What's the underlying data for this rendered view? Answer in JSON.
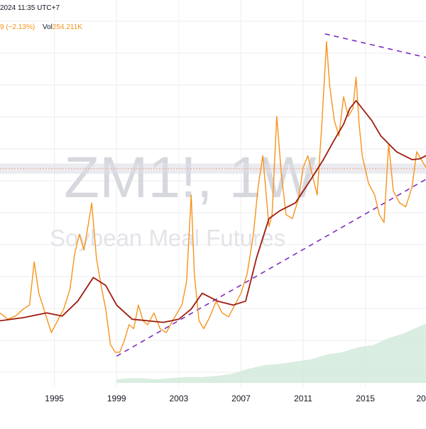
{
  "header": {
    "datetime": "2024 11:35 UTC+7",
    "change": "9 (−2.13%)",
    "volume_label": "Vol",
    "volume_value": "254.211K"
  },
  "watermark": {
    "symbol": "ZM1!, 1W",
    "name": "Soybean Meal Futures"
  },
  "colors": {
    "price": "#f7931a",
    "moving_average": "#9e1b0f",
    "trendline": "#7b2cbf",
    "volume": "#cfe8d8",
    "grid": "#eceef2",
    "band": "#dde0e6"
  },
  "chart_data": {
    "type": "line",
    "title": "ZM1!, 1W",
    "subtitle": "Soybean Meal Futures",
    "xlabel": "",
    "ylabel": "",
    "x_ticks": [
      "1995",
      "1999",
      "2003",
      "2007",
      "2011",
      "2015",
      "20"
    ],
    "xlim": [
      1991.5,
      2018.9
    ],
    "ylim": [
      100,
      560
    ],
    "grid": true,
    "series": [
      {
        "style": "line",
        "points": [
          [
            1991.5,
            180
          ],
          [
            1992.0,
            172
          ],
          [
            1992.5,
            176
          ],
          [
            1993.0,
            185
          ],
          [
            1993.4,
            190
          ],
          [
            1993.7,
            245
          ],
          [
            1994.0,
            205
          ],
          [
            1994.4,
            180
          ],
          [
            1994.8,
            155
          ],
          [
            1995.2,
            170
          ],
          [
            1995.6,
            185
          ],
          [
            1996.0,
            210
          ],
          [
            1996.3,
            255
          ],
          [
            1996.6,
            280
          ],
          [
            1996.9,
            260
          ],
          [
            1997.2,
            295
          ],
          [
            1997.4,
            320
          ],
          [
            1997.7,
            250
          ],
          [
            1998.0,
            215
          ],
          [
            1998.3,
            185
          ],
          [
            1998.6,
            140
          ],
          [
            1998.9,
            130
          ],
          [
            1999.2,
            130
          ],
          [
            1999.5,
            145
          ],
          [
            1999.8,
            165
          ],
          [
            2000.1,
            160
          ],
          [
            2000.4,
            190
          ],
          [
            2000.7,
            170
          ],
          [
            2001.0,
            165
          ],
          [
            2001.4,
            180
          ],
          [
            2001.8,
            160
          ],
          [
            2002.2,
            155
          ],
          [
            2002.6,
            170
          ],
          [
            2002.9,
            180
          ],
          [
            2003.2,
            190
          ],
          [
            2003.5,
            220
          ],
          [
            2003.8,
            330
          ],
          [
            2004.0,
            230
          ],
          [
            2004.3,
            170
          ],
          [
            2004.6,
            160
          ],
          [
            2005.0,
            175
          ],
          [
            2005.4,
            195
          ],
          [
            2005.8,
            180
          ],
          [
            2006.2,
            175
          ],
          [
            2006.6,
            190
          ],
          [
            2007.0,
            205
          ],
          [
            2007.4,
            230
          ],
          [
            2007.8,
            280
          ],
          [
            2008.1,
            340
          ],
          [
            2008.4,
            380
          ],
          [
            2008.6,
            335
          ],
          [
            2008.8,
            290
          ],
          [
            2009.0,
            305
          ],
          [
            2009.3,
            430
          ],
          [
            2009.6,
            355
          ],
          [
            2009.9,
            305
          ],
          [
            2010.3,
            300
          ],
          [
            2010.7,
            325
          ],
          [
            2011.0,
            365
          ],
          [
            2011.3,
            380
          ],
          [
            2011.6,
            355
          ],
          [
            2011.9,
            330
          ],
          [
            2012.2,
            420
          ],
          [
            2012.5,
            525
          ],
          [
            2012.7,
            470
          ],
          [
            2013.0,
            425
          ],
          [
            2013.3,
            405
          ],
          [
            2013.6,
            455
          ],
          [
            2013.9,
            430
          ],
          [
            2014.2,
            440
          ],
          [
            2014.4,
            480
          ],
          [
            2014.6,
            420
          ],
          [
            2014.8,
            380
          ],
          [
            2015.2,
            345
          ],
          [
            2015.6,
            330
          ],
          [
            2015.9,
            305
          ],
          [
            2016.2,
            295
          ],
          [
            2016.5,
            395
          ],
          [
            2016.8,
            335
          ],
          [
            2017.2,
            320
          ],
          [
            2017.6,
            315
          ],
          [
            2018.0,
            340
          ],
          [
            2018.3,
            385
          ],
          [
            2018.6,
            375
          ],
          [
            2018.9,
            365
          ]
        ]
      },
      {
        "style": "line",
        "points": [
          [
            1991.5,
            170
          ],
          [
            1993.0,
            174
          ],
          [
            1994.5,
            180
          ],
          [
            1995.5,
            176
          ],
          [
            1996.5,
            195
          ],
          [
            1997.5,
            225
          ],
          [
            1998.3,
            215
          ],
          [
            1999.0,
            190
          ],
          [
            2000.0,
            172
          ],
          [
            2001.0,
            170
          ],
          [
            2002.0,
            168
          ],
          [
            2003.0,
            172
          ],
          [
            2003.8,
            185
          ],
          [
            2004.5,
            205
          ],
          [
            2005.5,
            195
          ],
          [
            2006.5,
            190
          ],
          [
            2007.3,
            195
          ],
          [
            2008.0,
            250
          ],
          [
            2008.8,
            300
          ],
          [
            2009.5,
            310
          ],
          [
            2010.5,
            320
          ],
          [
            2011.5,
            350
          ],
          [
            2012.3,
            375
          ],
          [
            2013.0,
            400
          ],
          [
            2013.6,
            420
          ],
          [
            2014.0,
            440
          ],
          [
            2014.4,
            450
          ],
          [
            2014.8,
            440
          ],
          [
            2015.4,
            425
          ],
          [
            2016.0,
            405
          ],
          [
            2016.5,
            395
          ],
          [
            2017.0,
            385
          ],
          [
            2017.5,
            380
          ],
          [
            2018.0,
            375
          ],
          [
            2018.5,
            376
          ],
          [
            2018.9,
            380
          ]
        ]
      }
    ],
    "trendlines": [
      {
        "from": [
          1999.0,
          125
        ],
        "to": [
          2018.9,
          350
        ]
      },
      {
        "from": [
          2012.4,
          535
        ],
        "to": [
          2018.9,
          505
        ]
      }
    ],
    "horizontal_band": [
      357,
      370
    ],
    "volume": {
      "ylim": [
        0,
        60
      ],
      "points": [
        [
          1999.0,
          3
        ],
        [
          2000.0,
          4
        ],
        [
          2000.5,
          4
        ],
        [
          2001.5,
          3
        ],
        [
          2002.5,
          4
        ],
        [
          2003.5,
          5
        ],
        [
          2004.5,
          5
        ],
        [
          2005.5,
          6
        ],
        [
          2006.5,
          8
        ],
        [
          2007.0,
          10
        ],
        [
          2007.5,
          12
        ],
        [
          2008.5,
          15
        ],
        [
          2009.5,
          16
        ],
        [
          2010.5,
          18
        ],
        [
          2011.5,
          20
        ],
        [
          2012.5,
          24
        ],
        [
          2013.5,
          26
        ],
        [
          2014.5,
          30
        ],
        [
          2015.5,
          32
        ],
        [
          2016.5,
          38
        ],
        [
          2017.5,
          42
        ],
        [
          2018.5,
          48
        ],
        [
          2018.9,
          50
        ]
      ]
    }
  }
}
